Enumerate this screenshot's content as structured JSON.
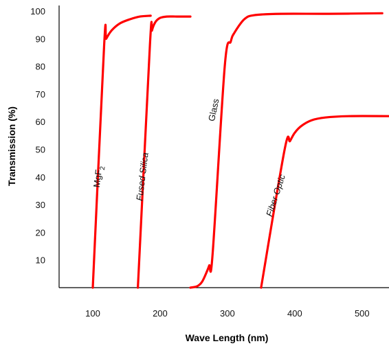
{
  "chart_data": {
    "type": "line",
    "title": "",
    "xlabel": "Wave Length (nm)",
    "ylabel": "Transmission (%)",
    "xlim": [
      50,
      540
    ],
    "ylim": [
      0,
      102
    ],
    "xticks": [
      100,
      200,
      300,
      400,
      500
    ],
    "yticks": [
      10,
      20,
      30,
      40,
      50,
      60,
      70,
      80,
      90,
      100
    ],
    "grid": false,
    "line_color": "#ff0000",
    "series": [
      {
        "name": "MgF",
        "subscript": "2",
        "x": [
          100,
          117,
          120,
          128,
          140,
          155,
          170,
          186
        ],
        "y": [
          0,
          88,
          90,
          93,
          95.5,
          97,
          98,
          98.3
        ]
      },
      {
        "name": "Fused Silica",
        "x": [
          167,
          185,
          188,
          193,
          200,
          210,
          225,
          245
        ],
        "y": [
          0,
          88,
          93,
          96,
          97.5,
          98,
          98,
          98
        ]
      },
      {
        "name": "Glass",
        "x": [
          245,
          255,
          262,
          268,
          273,
          278,
          296,
          305,
          310,
          325,
          340,
          380,
          450,
          530
        ],
        "y": [
          0,
          0.5,
          2,
          5,
          8,
          12,
          80,
          89,
          92,
          97,
          98.5,
          99,
          99,
          99.2
        ],
        "label_rotation": -82
      },
      {
        "name": "Fiber Optic",
        "x": [
          350,
          385,
          393,
          400,
          410,
          425,
          445,
          480,
          540
        ],
        "y": [
          0,
          50,
          53,
          56,
          58.5,
          60.5,
          61.5,
          62,
          62
        ]
      }
    ]
  }
}
